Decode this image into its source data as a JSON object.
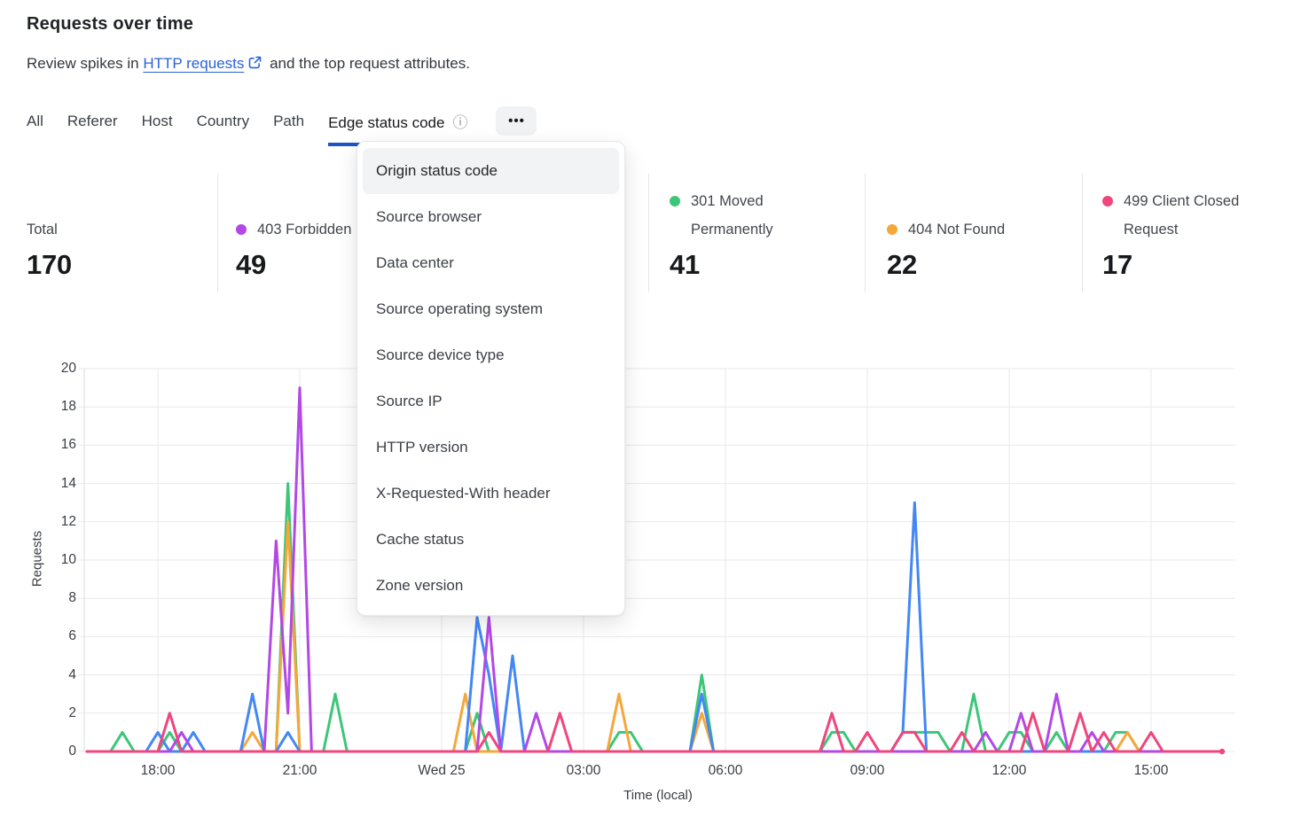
{
  "header": {
    "title": "Requests over time",
    "subtitle_prefix": "Review spikes in",
    "link_text": "HTTP requests",
    "subtitle_suffix": "and the top request attributes."
  },
  "tabs": {
    "items": [
      {
        "label": "All",
        "active": false
      },
      {
        "label": "Referer",
        "active": false
      },
      {
        "label": "Host",
        "active": false
      },
      {
        "label": "Country",
        "active": false
      },
      {
        "label": "Path",
        "active": false
      },
      {
        "label": "Edge status code",
        "active": true
      }
    ],
    "more_label": "•••",
    "info_icon": "ⓘ"
  },
  "dropdown": {
    "highlighted": "Origin status code",
    "items": [
      "Origin status code",
      "Source browser",
      "Data center",
      "Source operating system",
      "Source device type",
      "Source IP",
      "HTTP version",
      "X-Requested-With header",
      "Cache status",
      "Zone version"
    ]
  },
  "stats": [
    {
      "label": "Total",
      "value": "170",
      "color": null
    },
    {
      "label": "403 Forbidden",
      "value": "49",
      "color": "#b248e6"
    },
    {
      "label": "301 Moved Permanently",
      "value": "41",
      "color": "#3cc677"
    },
    {
      "label": "404 Not Found",
      "value": "22",
      "color": "#f5a73b"
    },
    {
      "label": "499 Client Closed Request",
      "value": "17",
      "color": "#f0457d"
    }
  ],
  "chart_data": {
    "type": "line",
    "title": "Requests over time",
    "xlabel": "Time (local)",
    "ylabel": "Requests",
    "ylim": [
      0,
      20
    ],
    "ytick_step": 2,
    "grid": true,
    "legend_position": "top (stat cards)",
    "x_unit": "15-minute intervals, Tue 16:30 through Wed 16:30",
    "n_points": 97,
    "xticks": [
      {
        "label": "18:00",
        "index": 6
      },
      {
        "label": "21:00",
        "index": 18
      },
      {
        "label": "Wed 25",
        "index": 30
      },
      {
        "label": "03:00",
        "index": 42
      },
      {
        "label": "06:00",
        "index": 54
      },
      {
        "label": "09:00",
        "index": 66
      },
      {
        "label": "12:00",
        "index": 78
      },
      {
        "label": "15:00",
        "index": 90
      }
    ],
    "series": [
      {
        "name": "301 Moved Permanently",
        "color": "#3cc677",
        "values": [
          0,
          0,
          0,
          1,
          0,
          0,
          0,
          1,
          0,
          0,
          0,
          0,
          0,
          0,
          0,
          0,
          0,
          14,
          0,
          0,
          0,
          3,
          0,
          0,
          0,
          0,
          0,
          0,
          0,
          0,
          0,
          0,
          0,
          2,
          0,
          0,
          0,
          0,
          0,
          0,
          0,
          0,
          0,
          0,
          0,
          1,
          1,
          0,
          0,
          0,
          0,
          0,
          4,
          0,
          0,
          0,
          0,
          0,
          0,
          0,
          0,
          0,
          0,
          1,
          1,
          0,
          0,
          0,
          0,
          1,
          1,
          1,
          1,
          0,
          0,
          3,
          0,
          0,
          1,
          1,
          0,
          0,
          1,
          0,
          0,
          0,
          0,
          1,
          1,
          0,
          0,
          0,
          0,
          0,
          0,
          0,
          0
        ]
      },
      {
        "name": "404 Not Found",
        "color": "#f5a73b",
        "values": [
          0,
          0,
          0,
          0,
          0,
          0,
          0,
          0,
          0,
          0,
          0,
          0,
          0,
          0,
          1,
          0,
          0,
          12,
          0,
          0,
          0,
          0,
          0,
          0,
          0,
          0,
          0,
          0,
          0,
          0,
          0,
          0,
          3,
          0,
          0,
          0,
          0,
          0,
          0,
          0,
          0,
          0,
          0,
          0,
          0,
          3,
          0,
          0,
          0,
          0,
          0,
          0,
          2,
          0,
          0,
          0,
          0,
          0,
          0,
          0,
          0,
          0,
          0,
          0,
          0,
          0,
          0,
          0,
          0,
          0,
          0,
          0,
          0,
          0,
          0,
          0,
          0,
          0,
          0,
          0,
          0,
          0,
          0,
          0,
          0,
          0,
          0,
          0,
          1,
          0,
          0,
          0,
          0,
          0,
          0,
          0,
          0
        ]
      },
      {
        "name": "",
        "color": "#4287f5",
        "values": [
          0,
          0,
          0,
          0,
          0,
          0,
          1,
          0,
          0,
          1,
          0,
          0,
          0,
          0,
          3,
          0,
          0,
          1,
          0,
          0,
          0,
          0,
          0,
          0,
          0,
          0,
          0,
          0,
          0,
          0,
          0,
          0,
          0,
          7,
          4,
          0,
          5,
          0,
          0,
          0,
          0,
          0,
          0,
          0,
          0,
          0,
          0,
          0,
          0,
          0,
          0,
          0,
          3,
          0,
          0,
          0,
          0,
          0,
          0,
          0,
          0,
          0,
          0,
          0,
          0,
          0,
          0,
          0,
          0,
          1,
          13,
          0,
          0,
          0,
          0,
          0,
          0,
          0,
          0,
          0,
          0,
          0,
          0,
          0,
          0,
          0,
          0,
          0,
          0,
          0,
          0,
          0,
          0,
          0,
          0,
          0,
          0
        ]
      },
      {
        "name": "403 Forbidden",
        "color": "#b248e6",
        "values": [
          0,
          0,
          0,
          0,
          0,
          0,
          0,
          0,
          1,
          0,
          0,
          0,
          0,
          0,
          0,
          0,
          11,
          2,
          19,
          0,
          0,
          0,
          0,
          0,
          0,
          0,
          0,
          0,
          0,
          0,
          0,
          0,
          0,
          0,
          7,
          0,
          0,
          0,
          2,
          0,
          0,
          0,
          0,
          0,
          0,
          0,
          0,
          0,
          0,
          0,
          0,
          0,
          0,
          0,
          0,
          0,
          0,
          0,
          0,
          0,
          0,
          0,
          0,
          0,
          0,
          0,
          0,
          0,
          0,
          0,
          0,
          0,
          0,
          0,
          0,
          0,
          1,
          0,
          0,
          2,
          0,
          0,
          3,
          0,
          0,
          1,
          0,
          0,
          0,
          0,
          0,
          0,
          0,
          0,
          0,
          0,
          0
        ]
      },
      {
        "name": "499 Client Closed Request",
        "color": "#f0457d",
        "values": [
          0,
          0,
          0,
          0,
          0,
          0,
          0,
          2,
          0,
          0,
          0,
          0,
          0,
          0,
          0,
          0,
          0,
          0,
          0,
          0,
          0,
          0,
          0,
          0,
          0,
          0,
          0,
          0,
          0,
          0,
          0,
          0,
          0,
          0,
          1,
          0,
          0,
          0,
          0,
          0,
          2,
          0,
          0,
          0,
          0,
          0,
          0,
          0,
          0,
          0,
          0,
          0,
          0,
          0,
          0,
          0,
          0,
          0,
          0,
          0,
          0,
          0,
          0,
          2,
          0,
          0,
          1,
          0,
          0,
          1,
          1,
          0,
          0,
          0,
          1,
          0,
          0,
          0,
          0,
          0,
          2,
          0,
          0,
          0,
          2,
          0,
          1,
          0,
          0,
          0,
          1,
          0,
          0,
          0,
          0,
          0,
          0
        ]
      }
    ],
    "end_marker": {
      "series": "499 Client Closed Request",
      "index": 96,
      "value": 0
    }
  }
}
